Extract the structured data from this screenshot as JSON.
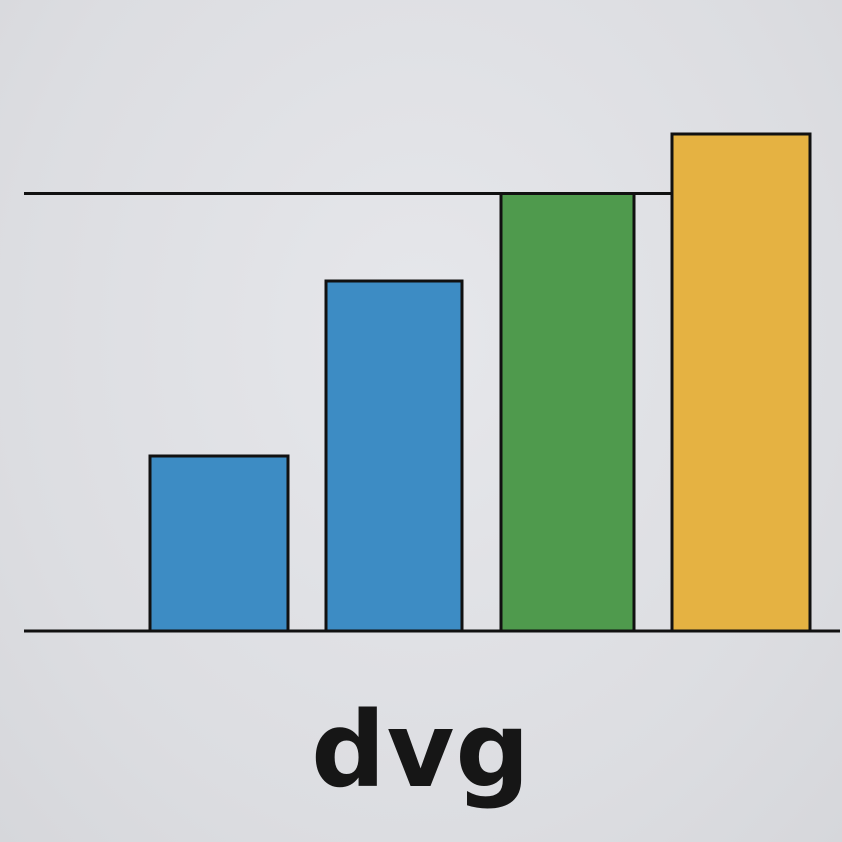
{
  "chart_data": {
    "type": "bar",
    "categories": [
      "",
      "",
      "",
      ""
    ],
    "values": [
      2.5,
      5,
      6.25,
      7.1
    ],
    "colors": [
      "#3d8cc4",
      "#3d8cc4",
      "#4f9a4d",
      "#e5b242"
    ],
    "reference_line": 6.25,
    "ylim": [
      0,
      7.5
    ],
    "grid": false,
    "legend": "none",
    "xlabel": "dvg",
    "ylabel": "",
    "title": ""
  }
}
